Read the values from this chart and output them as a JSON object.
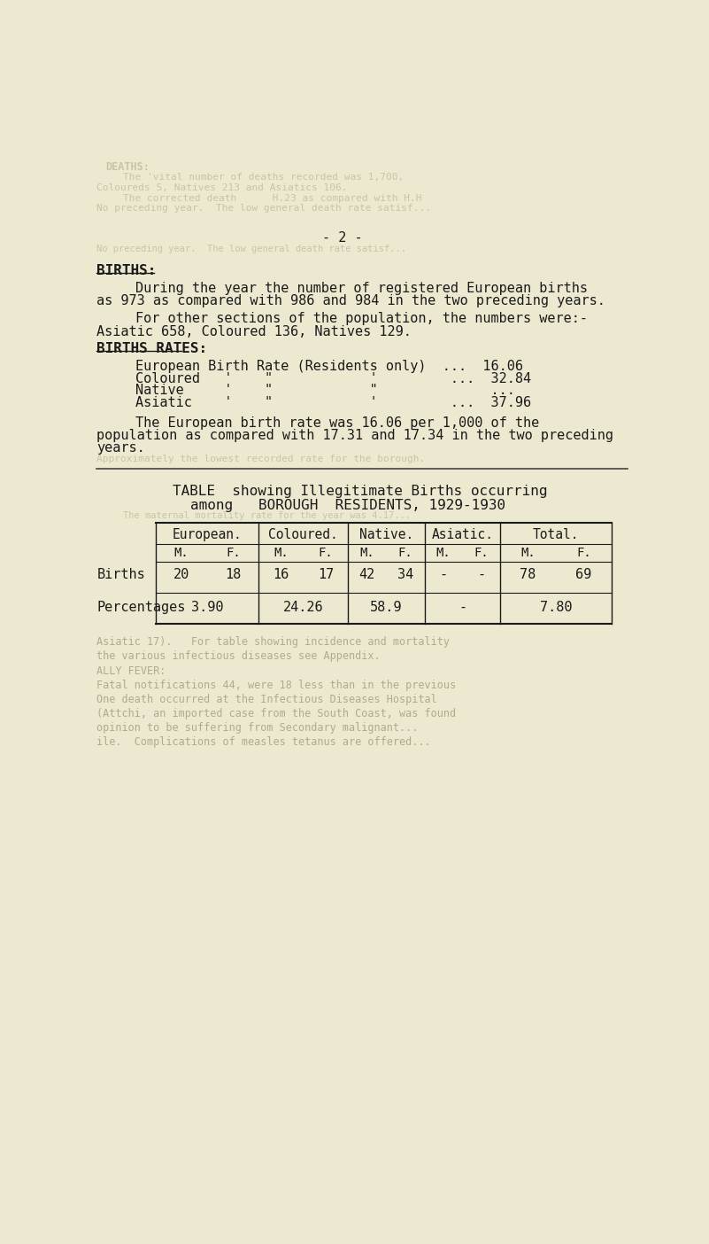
{
  "page_bg": "#ede9d0",
  "text_color": "#1a1a1a",
  "faded_color": "#b0aa90",
  "faded_color2": "#c8c4a8",
  "page_num": "- 2 -",
  "section_header_top": "BIRTHS:",
  "para1a": "During the year the number of registered European births",
  "para1b": "as 973 as compared with 986 and 984 in the two preceding years.",
  "para2": "For other sections of the population, the numbers were:-",
  "para3": "Asiatic 658, Coloured 136, Natives 129.",
  "section_header2": "BIRTHS RATES:",
  "rate1": "European Birth Rate (Residents only)  ...  16.06",
  "rate2": "Coloured   '    \"            '         ...  32.84",
  "rate3": "Native     '    \"            \"              ...",
  "rate4": "Asiatic    '    \"            '         ...  37.96",
  "para4a": "The European birth rate was 16.06 per 1,000 of the",
  "para4b": "population as compared with 17.31 and 17.34 in the two preceding",
  "para4c": "years.",
  "faded_approx": "Approximately the lowest recorded rate for the borough.",
  "table_title1": "TABLE  showing Illegitimate Births occurring",
  "table_title2": "among   BOROUGH  RESIDENTS, 1929-1930",
  "faded_maternal": "The maternal mortality rate for the year was 4.17...",
  "col_headers": [
    "European.",
    "Coloured.",
    "Native.",
    "Asiatic.",
    "Total."
  ],
  "row1_label": "Births",
  "row1_data": [
    "20",
    "18",
    "16",
    "17",
    "42",
    "34",
    "-",
    "-",
    "78",
    "69"
  ],
  "row2_label": "Percentages",
  "row2_vals": [
    "3.90",
    "24.26",
    "58.9",
    "-",
    "7.80"
  ],
  "faded_top1": "DEATHS:",
  "faded_top2": "The 'vital number of deaths recorded was 1,700,",
  "faded_top3": "Coloureds 5, Natives 213 and Asiatics 106.",
  "faded_top4": "The corrected death      H.23 as compared with H.H",
  "faded_top5": "No preceding year.  The low general death rate satisf...",
  "faded_bot1": "Asiatic 17).   For table showing incidence and mortality",
  "faded_bot2": "the various infectious diseases see Appendix.",
  "faded_bot3": "ALLY FEVER:",
  "faded_bot4": "Fatal notifications 44, were 18 less than in the previous",
  "faded_bot5": "One death occurred at the Infectious Diseases Hospital",
  "faded_bot6": "(Attchi, an imported case from the South Coast, was found",
  "faded_bot7": "opinion to be suffering from Secondary malignant...",
  "faded_bot8": "ile.  Complications of measles tetanus are offered..."
}
